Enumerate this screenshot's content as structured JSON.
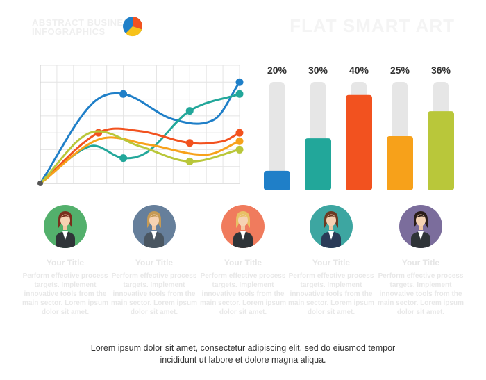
{
  "header": {
    "title_lines": [
      "ABSTRACT BUSINESS",
      "INFOGRAPHICS"
    ],
    "brand": "FLAT SMART ART"
  },
  "colors": {
    "blue": "#1f7fc8",
    "teal": "#22a79a",
    "orange_red": "#f2521f",
    "orange": "#f7a11a",
    "lime": "#b9c73a",
    "track": "#e6e6e6"
  },
  "chart_data": [
    {
      "type": "line",
      "x": [
        0,
        1,
        2,
        3,
        4,
        5,
        6,
        7,
        8,
        9,
        10,
        11,
        12
      ],
      "xlim": [
        0,
        12
      ],
      "ylim": [
        0,
        7
      ],
      "grid": true,
      "series": [
        {
          "color": "#1f7fc8",
          "x": [
            0,
            3,
            5,
            8,
            10.5,
            12
          ],
          "values": [
            0,
            4.6,
            5.3,
            3.8,
            3.8,
            6.0
          ],
          "markers": [
            5,
            12
          ]
        },
        {
          "color": "#22a79a",
          "x": [
            0,
            3,
            5,
            6.5,
            9,
            12
          ],
          "values": [
            0,
            2.2,
            1.5,
            1.9,
            4.3,
            5.3
          ],
          "markers": [
            5,
            9,
            12
          ]
        },
        {
          "color": "#f2521f",
          "x": [
            0,
            3.5,
            6,
            9,
            11,
            12
          ],
          "values": [
            0,
            3.0,
            3.1,
            2.4,
            2.5,
            3.0
          ],
          "markers": [
            3.5,
            9,
            12
          ]
        },
        {
          "color": "#f7a11a",
          "x": [
            0,
            3.5,
            6.5,
            10,
            12
          ],
          "values": [
            0,
            2.6,
            2.3,
            1.7,
            2.5
          ],
          "markers": [
            12
          ]
        },
        {
          "color": "#b9c73a",
          "x": [
            0,
            3,
            6,
            9,
            12
          ],
          "values": [
            0,
            3.0,
            2.2,
            1.3,
            2.0
          ],
          "markers": [
            9,
            12
          ]
        }
      ]
    },
    {
      "type": "bar",
      "categories": [
        "1",
        "2",
        "3",
        "4",
        "5"
      ],
      "values": [
        20,
        30,
        40,
        25,
        36
      ],
      "labels": [
        "20%",
        "30%",
        "40%",
        "25%",
        "36%"
      ],
      "colors": [
        "#1f7fc8",
        "#22a79a",
        "#f2521f",
        "#f7a11a",
        "#b9c73a"
      ],
      "fill_fractions": [
        0.18,
        0.48,
        0.88,
        0.5,
        0.73
      ]
    }
  ],
  "people": [
    {
      "title": "Your Title",
      "desc": "Perform effective process targets. Implement innovative tools from the main sector. Lorem ipsum dolor sit amet.",
      "bg": "#53b06c",
      "hair": "#7a2f1c",
      "suit": "#2f3438"
    },
    {
      "title": "Your Title",
      "desc": "Perform effective process targets. Implement innovative tools from the main sector. Lorem ipsum dolor sit amet.",
      "bg": "#667f9b",
      "hair": "#c59a55",
      "suit": "#4a5661"
    },
    {
      "title": "Your Title",
      "desc": "Perform effective process targets. Implement innovative tools from the main sector. Lorem ipsum dolor sit amet.",
      "bg": "#f07b5d",
      "hair": "#e8c166",
      "suit": "#2f3438"
    },
    {
      "title": "Your Title",
      "desc": "Perform effective process targets. Implement innovative tools from the main sector. Lorem ipsum dolor sit amet.",
      "bg": "#3da6a1",
      "hair": "#6b3a22",
      "suit": "#2a3b57"
    },
    {
      "title": "Your Title",
      "desc": "Perform effective process targets. Implement innovative tools from the main sector. Lorem ipsum dolor sit amet.",
      "bg": "#7b6d9c",
      "hair": "#2a1c17",
      "suit": "#2f3438"
    }
  ],
  "footer": {
    "line1": "Lorem ipsum dolor sit amet, consectetur adipiscing elit, sed do eiusmod tempor",
    "line2": "incididunt ut labore et dolore magna aliqua."
  }
}
